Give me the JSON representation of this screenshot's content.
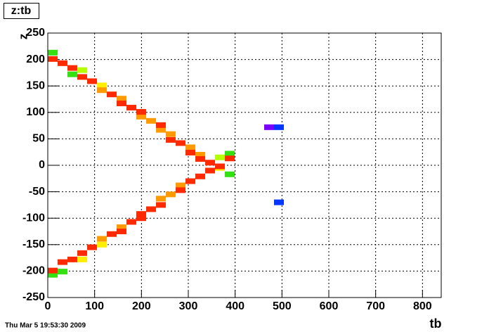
{
  "chart_data": {
    "type": "heatmap",
    "title": "z:tb",
    "x_label": "tb",
    "y_label": "z",
    "footer": "Thu Mar  5 19:53:30 2009",
    "xlim": [
      0,
      840
    ],
    "ylim": [
      -250,
      250
    ],
    "xticks": [
      0,
      100,
      200,
      300,
      400,
      500,
      600,
      700,
      800
    ],
    "yticks": [
      -250,
      -200,
      -150,
      -100,
      -50,
      0,
      50,
      100,
      150,
      200,
      250
    ],
    "grid": true,
    "series": [
      {
        "color": "#33e011",
        "x": [
          10.5,
          52.5,
          388.5,
          10.5,
          31.5,
          388.5
        ],
        "y": [
          213,
          172,
          22,
          -207,
          -201,
          -17
        ]
      },
      {
        "color": "#b4ff00",
        "x": [
          73.5,
          367.5
        ],
        "y": [
          180,
          15
        ]
      },
      {
        "color": "#ffee00",
        "x": [
          115.5,
          73.5,
          115.5,
          367.5
        ],
        "y": [
          151,
          -178,
          -150,
          -5
        ]
      },
      {
        "color": "#ff9a00",
        "x": [
          115.5,
          157.5,
          199.5,
          220.5,
          241.5,
          262.5,
          304.5,
          325.5,
          115.5,
          157.5,
          241.5,
          262.5,
          283.5
        ],
        "y": [
          142,
          126,
          92,
          84,
          67,
          59,
          34,
          20,
          -139,
          -117,
          -63,
          -55,
          -38
        ]
      },
      {
        "color": "#ff2a00",
        "x": [
          10.5,
          31.5,
          52.5,
          73.5,
          94.5,
          136.5,
          157.5,
          178.5,
          199.5,
          241.5,
          262.5,
          283.5,
          304.5,
          325.5,
          346.5,
          367.5,
          388.5,
          10.5,
          31.5,
          52.5,
          73.5,
          94.5,
          136.5,
          157.5,
          178.5,
          199.5,
          199.5,
          220.5,
          241.5,
          283.5,
          304.5,
          325.5,
          346.5
        ],
        "y": [
          201,
          193,
          184,
          167,
          159,
          134,
          117,
          109,
          101,
          76,
          48,
          42,
          24,
          12,
          5,
          -2,
          13,
          -199,
          -183,
          -178,
          -166,
          -155,
          -130,
          -125,
          -107,
          -100,
          -92,
          -83,
          -75,
          -47,
          -30,
          -21,
          -10
        ]
      },
      {
        "color": "#7a00ff",
        "x": [
          472.5
        ],
        "y": [
          72
        ]
      },
      {
        "color": "#0036ff",
        "x": [
          493.5,
          493.5
        ],
        "y": [
          72,
          -70
        ]
      }
    ]
  }
}
